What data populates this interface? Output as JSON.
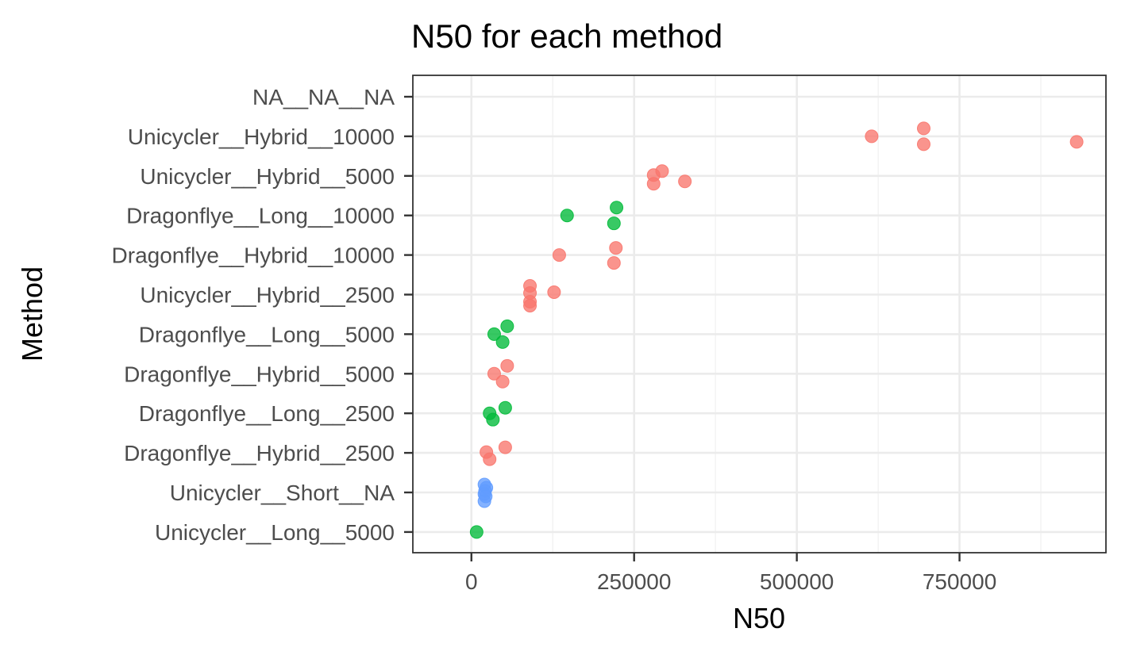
{
  "chart_data": {
    "type": "scatter",
    "title": "N50 for each method",
    "xlabel": "N50",
    "ylabel": "Method",
    "xlim": [
      -90000,
      975000
    ],
    "x_ticks": [
      0,
      250000,
      500000,
      750000
    ],
    "x_tick_labels": [
      "0",
      "250000",
      "500000",
      "750000"
    ],
    "categories": [
      "NA__NA__NA",
      "Unicycler__Hybrid__10000",
      "Unicycler__Hybrid__5000",
      "Dragonflye__Long__10000",
      "Dragonflye__Hybrid__10000",
      "Unicycler__Hybrid__2500",
      "Dragonflye__Long__5000",
      "Dragonflye__Hybrid__5000",
      "Dragonflye__Long__2500",
      "Dragonflye__Hybrid__2500",
      "Unicycler__Short__NA",
      "Unicycler__Long__5000"
    ],
    "grid": true,
    "legend": "none",
    "colors": {
      "hybrid": "#F8766D",
      "long": "#00BA38",
      "short": "#619CFF"
    },
    "series": [
      {
        "group": "hybrid",
        "points": [
          {
            "x": 615000,
            "y": "Unicycler__Hybrid__10000",
            "jitter": 0.0
          },
          {
            "x": 695000,
            "y": "Unicycler__Hybrid__10000",
            "jitter": 0.2
          },
          {
            "x": 695000,
            "y": "Unicycler__Hybrid__10000",
            "jitter": -0.2
          },
          {
            "x": 930000,
            "y": "Unicycler__Hybrid__10000",
            "jitter": -0.14
          },
          {
            "x": 280000,
            "y": "Unicycler__Hybrid__5000",
            "jitter": 0.02
          },
          {
            "x": 293000,
            "y": "Unicycler__Hybrid__5000",
            "jitter": 0.12
          },
          {
            "x": 280000,
            "y": "Unicycler__Hybrid__5000",
            "jitter": -0.2
          },
          {
            "x": 328000,
            "y": "Unicycler__Hybrid__5000",
            "jitter": -0.14
          },
          {
            "x": 135000,
            "y": "Dragonflye__Hybrid__10000",
            "jitter": 0.0
          },
          {
            "x": 222000,
            "y": "Dragonflye__Hybrid__10000",
            "jitter": 0.18
          },
          {
            "x": 219000,
            "y": "Dragonflye__Hybrid__10000",
            "jitter": -0.2
          },
          {
            "x": 90000,
            "y": "Unicycler__Hybrid__2500",
            "jitter": 0.22
          },
          {
            "x": 90000,
            "y": "Unicycler__Hybrid__2500",
            "jitter": 0.04
          },
          {
            "x": 90000,
            "y": "Unicycler__Hybrid__2500",
            "jitter": -0.18
          },
          {
            "x": 90000,
            "y": "Unicycler__Hybrid__2500",
            "jitter": -0.28
          },
          {
            "x": 127000,
            "y": "Unicycler__Hybrid__2500",
            "jitter": 0.06
          },
          {
            "x": 35000,
            "y": "Dragonflye__Hybrid__5000",
            "jitter": 0.0
          },
          {
            "x": 55000,
            "y": "Dragonflye__Hybrid__5000",
            "jitter": 0.2
          },
          {
            "x": 48000,
            "y": "Dragonflye__Hybrid__5000",
            "jitter": -0.2
          },
          {
            "x": 23000,
            "y": "Dragonflye__Hybrid__2500",
            "jitter": 0.02
          },
          {
            "x": 52000,
            "y": "Dragonflye__Hybrid__2500",
            "jitter": 0.14
          },
          {
            "x": 28000,
            "y": "Dragonflye__Hybrid__2500",
            "jitter": -0.16
          }
        ]
      },
      {
        "group": "long",
        "points": [
          {
            "x": 147000,
            "y": "Dragonflye__Long__10000",
            "jitter": 0.0
          },
          {
            "x": 223000,
            "y": "Dragonflye__Long__10000",
            "jitter": 0.2
          },
          {
            "x": 219000,
            "y": "Dragonflye__Long__10000",
            "jitter": -0.2
          },
          {
            "x": 35000,
            "y": "Dragonflye__Long__5000",
            "jitter": 0.0
          },
          {
            "x": 55000,
            "y": "Dragonflye__Long__5000",
            "jitter": 0.2
          },
          {
            "x": 48000,
            "y": "Dragonflye__Long__5000",
            "jitter": -0.2
          },
          {
            "x": 28000,
            "y": "Dragonflye__Long__2500",
            "jitter": 0.0
          },
          {
            "x": 52000,
            "y": "Dragonflye__Long__2500",
            "jitter": 0.14
          },
          {
            "x": 33000,
            "y": "Dragonflye__Long__2500",
            "jitter": -0.16
          },
          {
            "x": 8000,
            "y": "Unicycler__Long__5000",
            "jitter": 0.0
          }
        ]
      },
      {
        "group": "short",
        "points": [
          {
            "x": 20000,
            "y": "Unicycler__Short__NA",
            "jitter": 0.2
          },
          {
            "x": 23000,
            "y": "Unicycler__Short__NA",
            "jitter": 0.12
          },
          {
            "x": 21000,
            "y": "Unicycler__Short__NA",
            "jitter": 0.04
          },
          {
            "x": 20000,
            "y": "Unicycler__Short__NA",
            "jitter": -0.04
          },
          {
            "x": 22000,
            "y": "Unicycler__Short__NA",
            "jitter": -0.1
          },
          {
            "x": 20000,
            "y": "Unicycler__Short__NA",
            "jitter": -0.22
          }
        ]
      }
    ]
  }
}
